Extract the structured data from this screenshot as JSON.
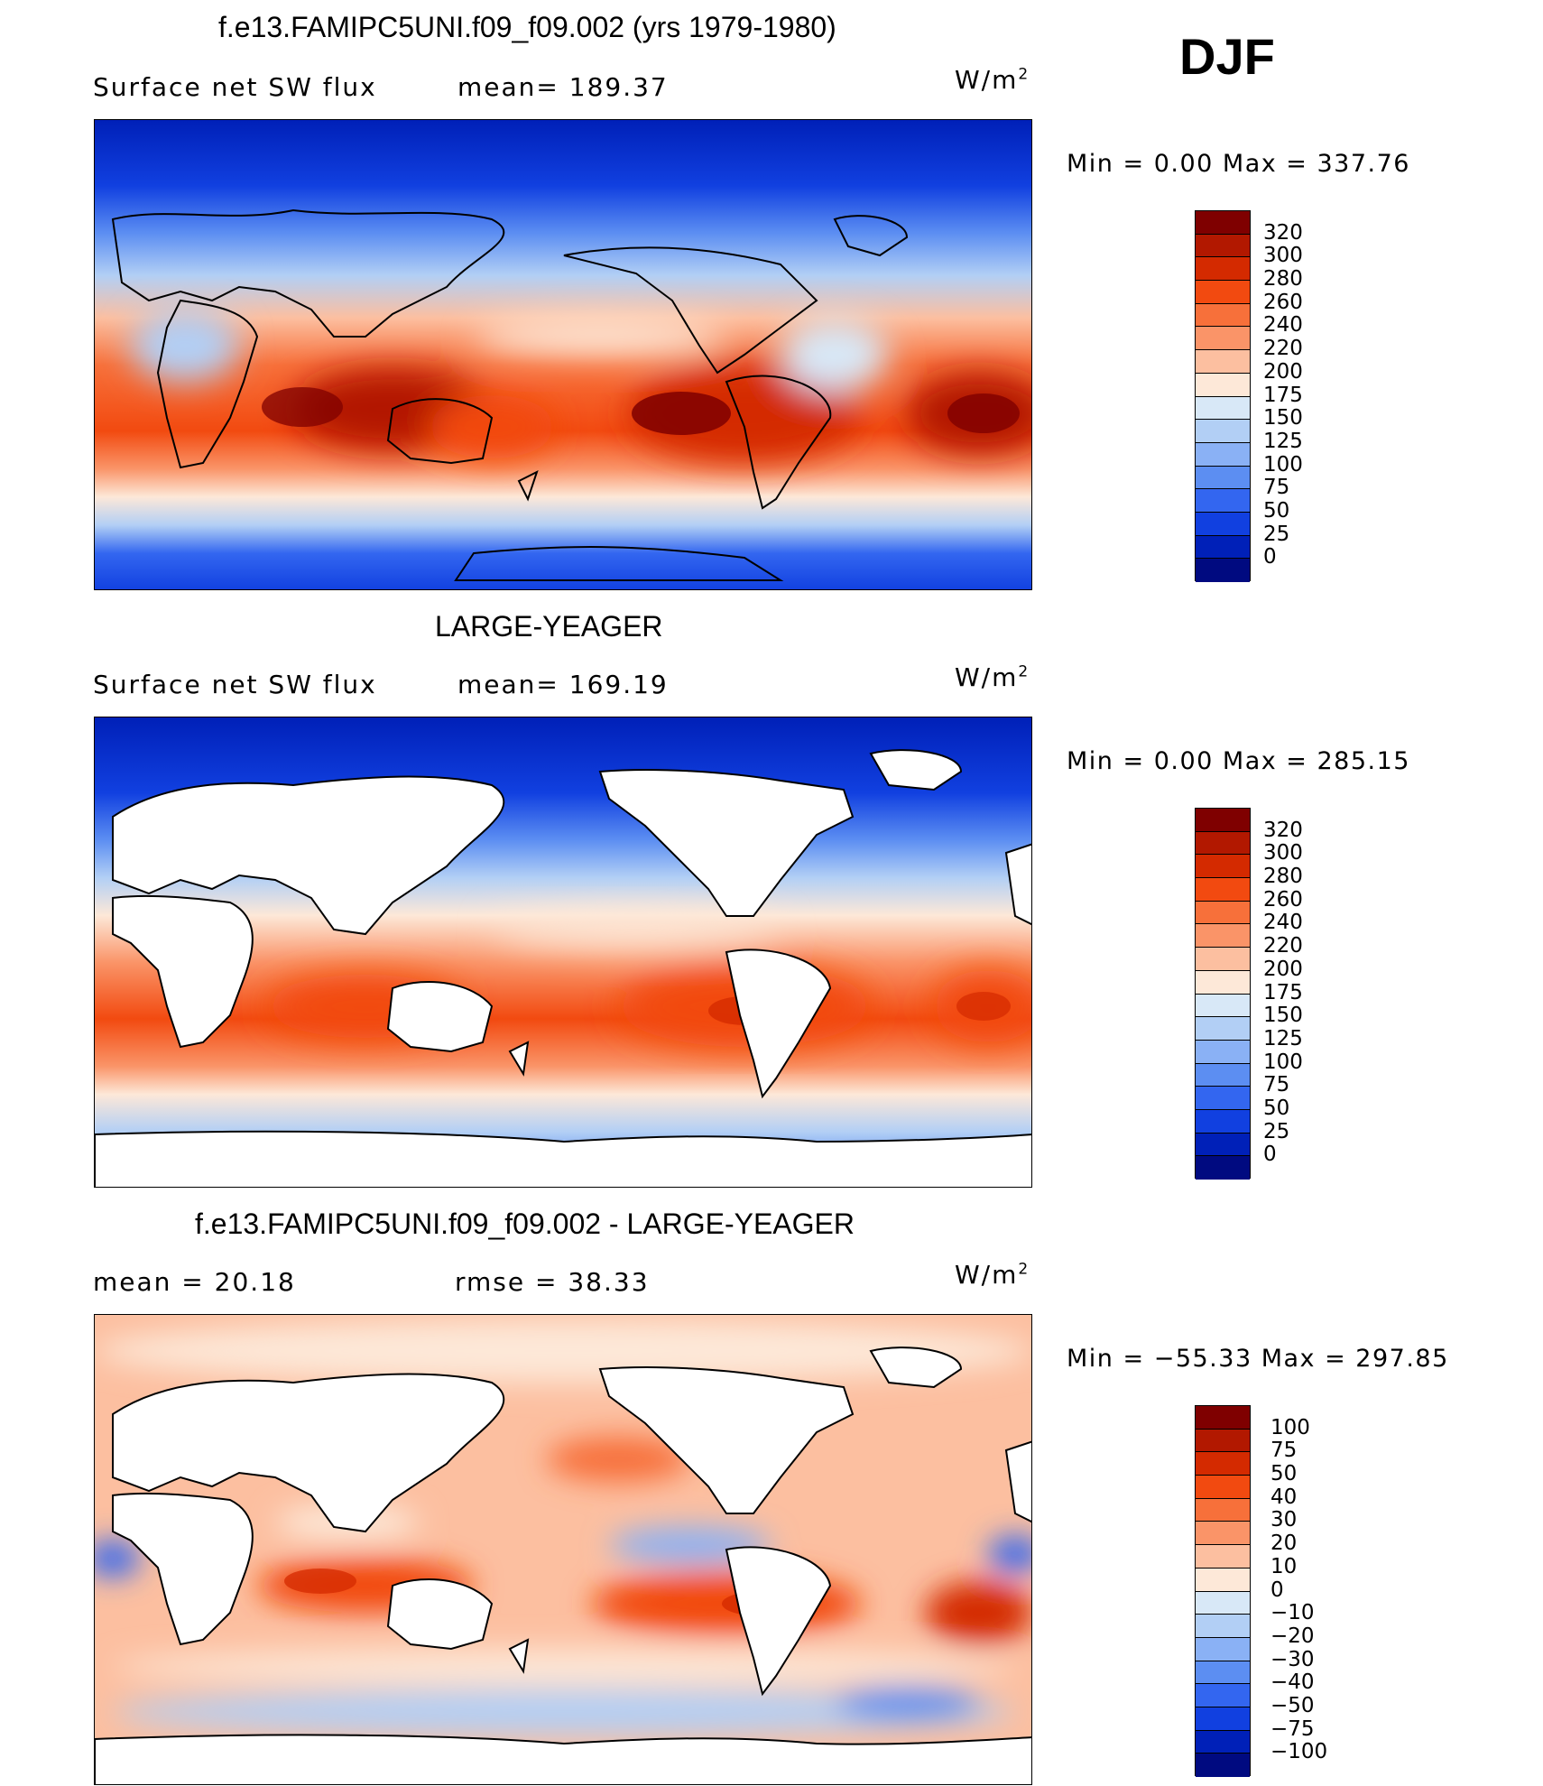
{
  "header": {
    "title": "f.e13.FAMIPC5UNI.f09_f09.002 (yrs 1979-1980)",
    "season": "DJF"
  },
  "units": {
    "base": "W/m",
    "exp": "2"
  },
  "panels": [
    {
      "id": "model",
      "title": "",
      "left_label": "Surface net SW flux",
      "mid_label": "mean= 189.37",
      "minmax": "Min =    0.00 Max = 337.76",
      "colorbar": "abs"
    },
    {
      "id": "obs",
      "title": "LARGE-YEAGER",
      "left_label": "Surface net SW flux",
      "mid_label": "mean= 169.19",
      "minmax": "Min =    0.00 Max = 285.15",
      "colorbar": "abs"
    },
    {
      "id": "diff",
      "title": "f.e13.FAMIPC5UNI.f09_f09.002 - LARGE-YEAGER",
      "left_label": "mean =   20.18",
      "mid_label": "rmse =   38.33",
      "minmax": "Min = −55.33 Max = 297.85",
      "colorbar": "diff"
    }
  ],
  "colorbars": {
    "abs": {
      "labels": [
        "320",
        "300",
        "280",
        "260",
        "240",
        "220",
        "200",
        "175",
        "150",
        "125",
        "100",
        "75",
        "50",
        "25",
        "0"
      ],
      "colors": [
        "#7f0000",
        "#b21800",
        "#d42a00",
        "#f24a10",
        "#f7703a",
        "#fa9468",
        "#fcbfa0",
        "#fde8d8",
        "#d8e8f7",
        "#b2cff5",
        "#8ab1f5",
        "#5c8ef2",
        "#3366f0",
        "#1140e0",
        "#0020b8",
        "#000a80"
      ]
    },
    "diff": {
      "labels": [
        "100",
        "75",
        "50",
        "40",
        "30",
        "20",
        "10",
        "0",
        "−10",
        "−20",
        "−30",
        "−40",
        "−50",
        "−75",
        "−100"
      ],
      "colors": [
        "#7f0000",
        "#b21800",
        "#d42a00",
        "#f24a10",
        "#f7703a",
        "#fa9468",
        "#fcbfa0",
        "#fde8d8",
        "#d8e8f7",
        "#b2cff5",
        "#8ab1f5",
        "#5c8ef2",
        "#3366f0",
        "#1140e0",
        "#0020b8",
        "#000a80"
      ]
    }
  },
  "chart_data": [
    {
      "type": "heatmap",
      "title": "f.e13.FAMIPC5UNI.f09_f09.002 (yrs 1979-1980)",
      "field": "Surface net SW flux",
      "mean": 189.37,
      "min": 0.0,
      "max": 337.76,
      "levels": [
        0,
        25,
        50,
        75,
        100,
        125,
        150,
        175,
        200,
        220,
        240,
        260,
        280,
        300,
        320
      ]
    },
    {
      "type": "heatmap",
      "title": "LARGE-YEAGER",
      "field": "Surface net SW flux",
      "mean": 169.19,
      "min": 0.0,
      "max": 285.15,
      "levels": [
        0,
        25,
        50,
        75,
        100,
        125,
        150,
        175,
        200,
        220,
        240,
        260,
        280,
        300,
        320
      ]
    },
    {
      "type": "heatmap",
      "title": "f.e13.FAMIPC5UNI.f09_f09.002 - LARGE-YEAGER",
      "mean": 20.18,
      "rmse": 38.33,
      "min": -55.33,
      "max": 297.85,
      "levels": [
        -100,
        -75,
        -50,
        -40,
        -30,
        -20,
        -10,
        0,
        10,
        20,
        30,
        40,
        50,
        75,
        100
      ]
    }
  ]
}
